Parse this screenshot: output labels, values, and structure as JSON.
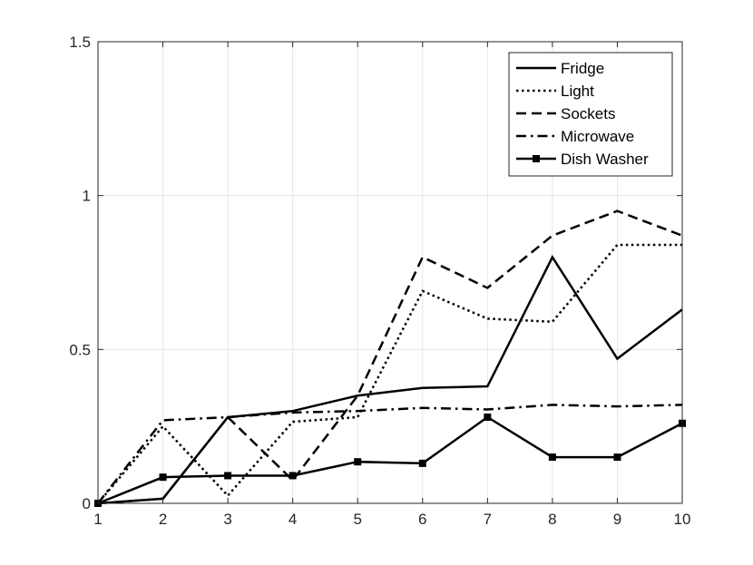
{
  "chart_data": {
    "type": "line",
    "title": "",
    "xlabel": "",
    "ylabel": "",
    "x": [
      1,
      2,
      3,
      4,
      5,
      6,
      7,
      8,
      9,
      10
    ],
    "xlim": [
      1,
      10
    ],
    "ylim": [
      0,
      1.5
    ],
    "x_ticks": [
      "1",
      "2",
      "3",
      "4",
      "5",
      "6",
      "7",
      "8",
      "9",
      "10"
    ],
    "y_ticks": [
      {
        "value": 0,
        "label": "0"
      },
      {
        "value": 0.5,
        "label": "0.5"
      },
      {
        "value": 1,
        "label": "1"
      },
      {
        "value": 1.5,
        "label": "1.5"
      }
    ],
    "grid": true,
    "legend_position": "top-right",
    "series": [
      {
        "name": "Fridge",
        "style": "solid",
        "marker": "none",
        "values": [
          0,
          0.015,
          0.28,
          0.3,
          0.35,
          0.375,
          0.38,
          0.8,
          0.47,
          0.63
        ]
      },
      {
        "name": "Light",
        "style": "dotted",
        "marker": "none",
        "values": [
          0,
          0.25,
          0.025,
          0.265,
          0.28,
          0.69,
          0.6,
          0.59,
          0.84,
          0.84
        ]
      },
      {
        "name": "Sockets",
        "style": "dashed",
        "marker": "none",
        "values": [
          0,
          0.015,
          0.28,
          0.075,
          0.35,
          0.8,
          0.7,
          0.87,
          0.95,
          0.87
        ]
      },
      {
        "name": "Microwave",
        "style": "dashdot",
        "marker": "none",
        "values": [
          0,
          0.27,
          0.28,
          0.295,
          0.3,
          0.31,
          0.305,
          0.32,
          0.315,
          0.32
        ]
      },
      {
        "name": "Dish Washer",
        "style": "solid",
        "marker": "square",
        "values": [
          0,
          0.085,
          0.09,
          0.09,
          0.135,
          0.13,
          0.28,
          0.15,
          0.15,
          0.26
        ]
      }
    ]
  },
  "colors": {
    "line": "#000000",
    "grid": "#e6e6e6",
    "axis": "#262626",
    "background": "#ffffff"
  }
}
